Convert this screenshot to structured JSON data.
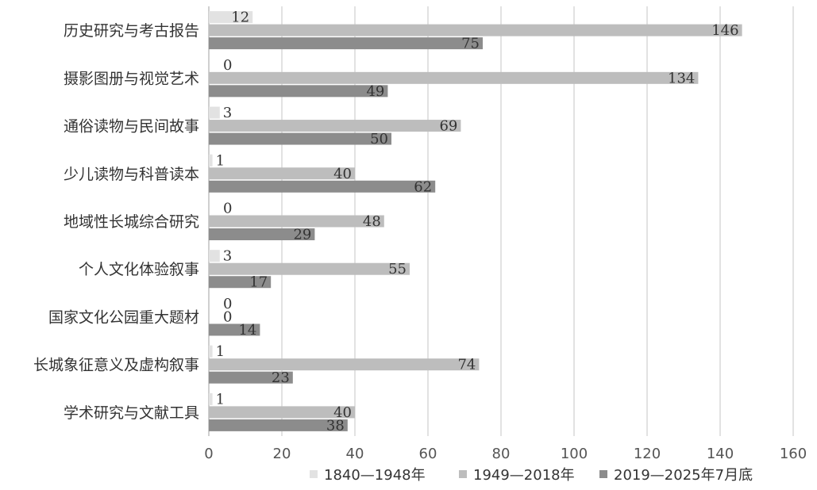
{
  "chart_data": {
    "type": "bar",
    "orientation": "horizontal",
    "categories": [
      "历史研究与考古报告",
      "摄影图册与视觉艺术",
      "通俗读物与民间故事",
      "少儿读物与科普读本",
      "地域性长城综合研究",
      "个人文化体验叙事",
      "国家文化公园重大题材",
      "长城象征意义及虚构叙事",
      "学术研究与文献工具"
    ],
    "series": [
      {
        "name": "1840—1948年",
        "color": "#e2e2e2",
        "values": [
          12,
          0,
          3,
          1,
          0,
          3,
          0,
          1,
          1
        ]
      },
      {
        "name": "1949—2018年",
        "color": "#bdbdbd",
        "values": [
          146,
          134,
          69,
          40,
          48,
          55,
          0,
          74,
          40
        ]
      },
      {
        "name": "2019—2025年7月底",
        "color": "#8c8c8c",
        "values": [
          75,
          49,
          50,
          62,
          29,
          17,
          14,
          23,
          38
        ]
      }
    ],
    "xlim": [
      0,
      160
    ],
    "xticks": [
      "0",
      "20",
      "40",
      "60",
      "80",
      "100",
      "120",
      "140",
      "160"
    ],
    "grid": "vertical",
    "legend_position": "bottom"
  }
}
